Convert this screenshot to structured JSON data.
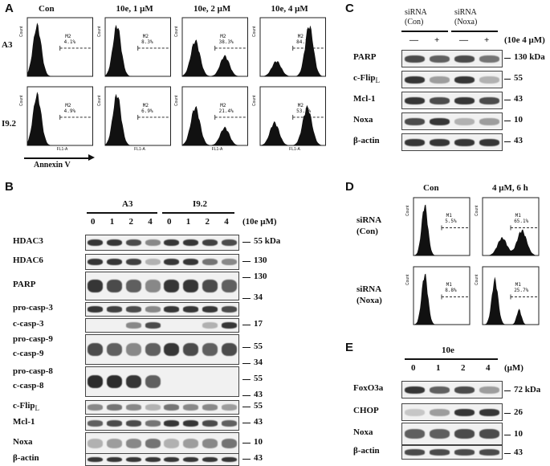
{
  "panels": {
    "A": {
      "label": "A",
      "columns": [
        "Con",
        "10e, 1 μM",
        "10e, 2 μM",
        "10e, 4 μM"
      ],
      "rows": [
        "A3",
        "I9.2"
      ],
      "gate_label": "M2",
      "percents": [
        [
          "4.1%",
          "8.3%",
          "38.3%",
          "84.7%"
        ],
        [
          "4.9%",
          "6.9%",
          "21.4%",
          "53.7%"
        ]
      ],
      "y_axis": "Count",
      "x_axis": "FL1-A",
      "footer": "Annexin V"
    },
    "B": {
      "label": "B",
      "groups": [
        "A3",
        "I9.2"
      ],
      "lanes": [
        "0",
        "1",
        "2",
        "4",
        "0",
        "1",
        "2",
        "4"
      ],
      "unit": "(10e μM)",
      "rows": [
        {
          "label": "HDAC3",
          "markers": [
            "55 kDa"
          ]
        },
        {
          "label": "HDAC6",
          "markers": [
            "130"
          ]
        },
        {
          "label": "PARP",
          "markers": [
            "130",
            "34"
          ]
        },
        {
          "label": "pro-casp-3",
          "markers": []
        },
        {
          "label": "c-casp-3",
          "markers": [
            "17"
          ]
        },
        {
          "label": "pro-casp-9",
          "markers": [
            "55"
          ]
        },
        {
          "label": "c-casp-9",
          "markers": [
            "34"
          ]
        },
        {
          "label": "pro-casp-8",
          "markers": [
            "55"
          ]
        },
        {
          "label": "c-casp-8",
          "markers": [
            "43"
          ]
        },
        {
          "label": "c-Flip",
          "sub": "L",
          "markers": [
            "55"
          ]
        },
        {
          "label": "Mcl-1",
          "markers": [
            "43"
          ]
        },
        {
          "label": "Noxa",
          "markers": [
            "10"
          ]
        },
        {
          "label": "β-actin",
          "markers": [
            "43"
          ]
        }
      ]
    },
    "C": {
      "label": "C",
      "groups": [
        "siRNA\n(Con)",
        "siRNA\n(Noxa)"
      ],
      "treat": [
        "—",
        "+",
        "—",
        "+"
      ],
      "unit": "(10e 4 μM)",
      "rows": [
        {
          "label": "PARP",
          "marker": "130 kDa"
        },
        {
          "label": "c-Flip",
          "sub": "L",
          "marker": "55"
        },
        {
          "label": "Mcl-1",
          "marker": "43"
        },
        {
          "label": "Noxa",
          "marker": "10"
        },
        {
          "label": "β-actin",
          "marker": "43"
        }
      ]
    },
    "D": {
      "label": "D",
      "columns": [
        "Con",
        "4 μM, 6 h"
      ],
      "rows": [
        "siRNA\n(Con)",
        "siRNA\n(Noxa)"
      ],
      "gate_label": "M1",
      "percents": [
        [
          "5.5%",
          "65.1%"
        ],
        [
          "8.8%",
          "25.7%"
        ]
      ],
      "y_axis": "Count"
    },
    "E": {
      "label": "E",
      "group": "10e",
      "lanes": [
        "0",
        "1",
        "2",
        "4"
      ],
      "unit": "(μM)",
      "rows": [
        {
          "label": "FoxO3a",
          "marker": "72 kDa"
        },
        {
          "label": "CHOP",
          "marker": "26"
        },
        {
          "label": "Noxa",
          "marker": "10"
        },
        {
          "label": "β-actin",
          "marker": "43"
        }
      ]
    }
  }
}
